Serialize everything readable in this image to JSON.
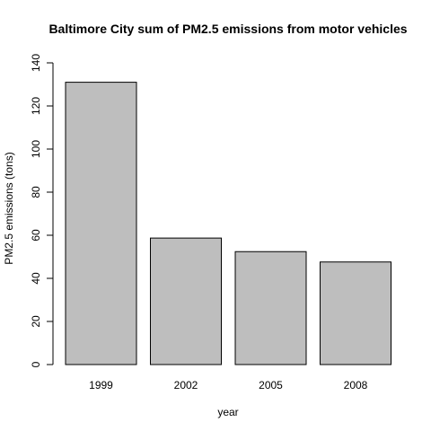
{
  "colors": {
    "bar_fill": "#bebebe",
    "bar_stroke": "#000000",
    "axis": "#000000",
    "background": "#ffffff"
  },
  "chart_data": {
    "type": "bar",
    "title": "Baltimore City sum of PM2.5 emissions from motor vehicles",
    "xlabel": "year",
    "ylabel": "PM2.5 emissions (tons)",
    "categories": [
      "1999",
      "2002",
      "2005",
      "2008"
    ],
    "values": [
      131,
      58.7,
      52.4,
      47.6
    ],
    "ylim": [
      0,
      140
    ],
    "yticks": [
      "0",
      "20",
      "40",
      "60",
      "80",
      "100",
      "120",
      "140"
    ],
    "grid": false,
    "legend": "none"
  }
}
